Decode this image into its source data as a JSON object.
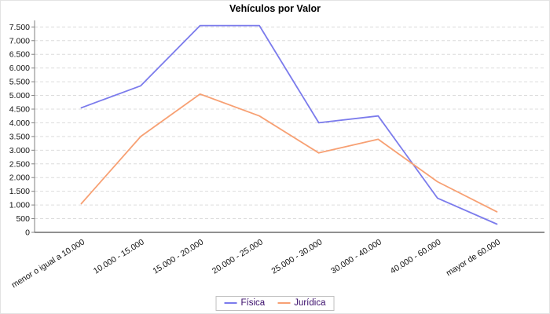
{
  "title": "Vehículos por Valor",
  "chart_data": {
    "type": "line",
    "title": "Vehículos por Valor",
    "xlabel": "",
    "ylabel": "",
    "categories": [
      "menor o igual a 10.000",
      "10.000 - 15.000",
      "15.000 - 20.000",
      "20.000 - 25.000",
      "25.000 - 30.000",
      "30.000 - 40.000",
      "40.000 - 60.000",
      "mayor de 60.000"
    ],
    "series": [
      {
        "name": "Física",
        "color": "#7b7bec",
        "values": [
          4550,
          5350,
          7550,
          7550,
          4000,
          4250,
          1250,
          300
        ]
      },
      {
        "name": "Jurídica",
        "color": "#f7a073",
        "values": [
          1050,
          3500,
          5050,
          4250,
          2900,
          3400,
          1850,
          750
        ]
      }
    ],
    "ylim": [
      0,
      7750
    ],
    "ytick_step": 500,
    "ytick_labels": [
      "0",
      "500",
      "1.000",
      "1.500",
      "2.000",
      "2.500",
      "3.000",
      "3.500",
      "4.000",
      "4.500",
      "5.000",
      "5.500",
      "6.000",
      "6.500",
      "7.000",
      "7.500"
    ],
    "grid": "horizontal-dashed-gray",
    "legend_position": "bottom-center",
    "x_label_rotation_deg": 32
  },
  "legend": {
    "text_color": "#3a0d6b"
  },
  "colors": {
    "grid": "#dcdcdc",
    "y_axis": "#808080",
    "x_axis": "#4d4d4d",
    "tick_text": "#111111",
    "background": "#ffffff"
  }
}
